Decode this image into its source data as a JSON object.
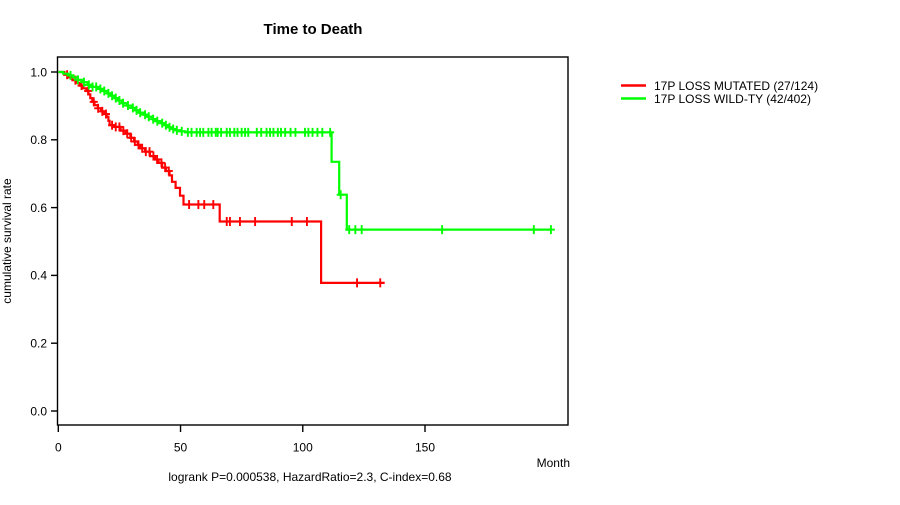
{
  "title": "Time to Death",
  "xlabel": "Month",
  "ylabel": "cumulative survival rate",
  "footer": "logrank P=0.000538, HazardRatio=2.3, C-index=0.68",
  "legend": [
    {
      "label": "17P LOSS MUTATED (27/124)",
      "color": "#ff0000"
    },
    {
      "label": "17P LOSS WILD-TY (42/402)",
      "color": "#00ff00"
    }
  ],
  "chart_data": {
    "type": "line",
    "subtype": "kaplan-meier-step",
    "title": "Time to Death",
    "xlabel": "Month",
    "ylabel": "cumulative survival rate",
    "xlim": [
      0,
      210
    ],
    "ylim": [
      0,
      1.04
    ],
    "grid": "off",
    "legend_position": "right-outside",
    "stats": {
      "logrank_p": "0.000538",
      "hazard_ratio": "2.3",
      "c_index": "0.68"
    },
    "xticks": {
      "values": [
        0,
        50,
        100,
        150
      ],
      "labels": [
        "0",
        "50",
        "100",
        "150"
      ]
    },
    "yticks": {
      "values": [
        0.0,
        0.2,
        0.4,
        0.6,
        0.8,
        1.0
      ],
      "labels": [
        "0.0",
        "0.2",
        "0.4",
        "0.6",
        "0.8",
        "1.0"
      ]
    },
    "series": [
      {
        "name": "17P LOSS MUTATED (27/124)",
        "color": "#ff0000",
        "events": 27,
        "n": 124,
        "steps": [
          [
            0,
            1.0
          ],
          [
            2.5,
            0.992
          ],
          [
            4.2,
            0.984
          ],
          [
            5.8,
            0.976
          ],
          [
            7.3,
            0.968
          ],
          [
            8.8,
            0.96
          ],
          [
            10.2,
            0.952
          ],
          [
            11.5,
            0.944
          ],
          [
            12.3,
            0.934
          ],
          [
            13.1,
            0.923
          ],
          [
            13.9,
            0.912
          ],
          [
            14.8,
            0.902
          ],
          [
            16.2,
            0.893
          ],
          [
            17.5,
            0.884
          ],
          [
            18.8,
            0.876
          ],
          [
            19.8,
            0.868
          ],
          [
            20.5,
            0.856
          ],
          [
            21.0,
            0.843
          ],
          [
            23.0,
            0.838
          ],
          [
            25.5,
            0.827
          ],
          [
            27.5,
            0.818
          ],
          [
            29.5,
            0.806
          ],
          [
            31.0,
            0.795
          ],
          [
            32.5,
            0.785
          ],
          [
            33.5,
            0.775
          ],
          [
            35.5,
            0.765
          ],
          [
            37.5,
            0.752
          ],
          [
            39.5,
            0.742
          ],
          [
            41.0,
            0.732
          ],
          [
            42.5,
            0.718
          ],
          [
            44.0,
            0.708
          ],
          [
            45.5,
            0.695
          ],
          [
            46.5,
            0.676
          ],
          [
            48.0,
            0.658
          ],
          [
            49.8,
            0.635
          ],
          [
            51.2,
            0.609
          ],
          [
            66.0,
            0.559
          ],
          [
            107.5,
            0.378
          ]
        ],
        "end_month": 133.5,
        "censors": [
          3.6,
          7,
          9.5,
          12.2,
          14.5,
          16.3,
          18,
          19.5,
          22,
          23.5,
          25,
          26.6,
          28.2,
          29.8,
          31.3,
          32.8,
          34.3,
          35.8,
          37.3,
          38.9,
          40.4,
          42.2,
          43.7,
          45.2,
          53.5,
          57.3,
          59.7,
          63.4,
          68.9,
          70.2,
          74.3,
          80.5,
          95.5,
          101.7,
          122.2,
          131.7
        ]
      },
      {
        "name": "17P LOSS WILD-TY (42/402)",
        "color": "#00ff00",
        "events": 42,
        "n": 402,
        "steps": [
          [
            0,
            1.0
          ],
          [
            2,
            0.995
          ],
          [
            4,
            0.99
          ],
          [
            6,
            0.984
          ],
          [
            8,
            0.977
          ],
          [
            10,
            0.97
          ],
          [
            12,
            0.962
          ],
          [
            14,
            0.956
          ],
          [
            16,
            0.95
          ],
          [
            18,
            0.944
          ],
          [
            20,
            0.937
          ],
          [
            21.5,
            0.93
          ],
          [
            23,
            0.923
          ],
          [
            24.5,
            0.916
          ],
          [
            26,
            0.908
          ],
          [
            28,
            0.901
          ],
          [
            30,
            0.894
          ],
          [
            31.5,
            0.887
          ],
          [
            33,
            0.88
          ],
          [
            35,
            0.874
          ],
          [
            36.5,
            0.868
          ],
          [
            38.5,
            0.861
          ],
          [
            40,
            0.855
          ],
          [
            42,
            0.849
          ],
          [
            43.5,
            0.843
          ],
          [
            45,
            0.837
          ],
          [
            46.5,
            0.832
          ],
          [
            48,
            0.828
          ],
          [
            50,
            0.825
          ],
          [
            52,
            0.822
          ],
          [
            111.8,
            0.735
          ],
          [
            114.9,
            0.638
          ],
          [
            118,
            0.535
          ]
        ],
        "end_month": 201.8,
        "censors": [
          5,
          8,
          10.5,
          12.5,
          14,
          15.5,
          17.2,
          18.8,
          20.5,
          22,
          23.5,
          25,
          26.5,
          28.5,
          30.5,
          32,
          33.5,
          35.5,
          37,
          38.8,
          40.5,
          42.5,
          44,
          45.5,
          47,
          48.5,
          50.5,
          53,
          54.5,
          56.6,
          58,
          59.3,
          61.4,
          62.7,
          64.4,
          65.2,
          66.6,
          68.9,
          70.2,
          72,
          73.3,
          75,
          76.4,
          77.7,
          81.2,
          83,
          85.2,
          86.6,
          88,
          89.8,
          91.1,
          92.8,
          95,
          97,
          100.9,
          102.3,
          104,
          106,
          108,
          111.2,
          115.5,
          119,
          121.5,
          124.1,
          157,
          194.5,
          201.5
        ]
      }
    ]
  }
}
